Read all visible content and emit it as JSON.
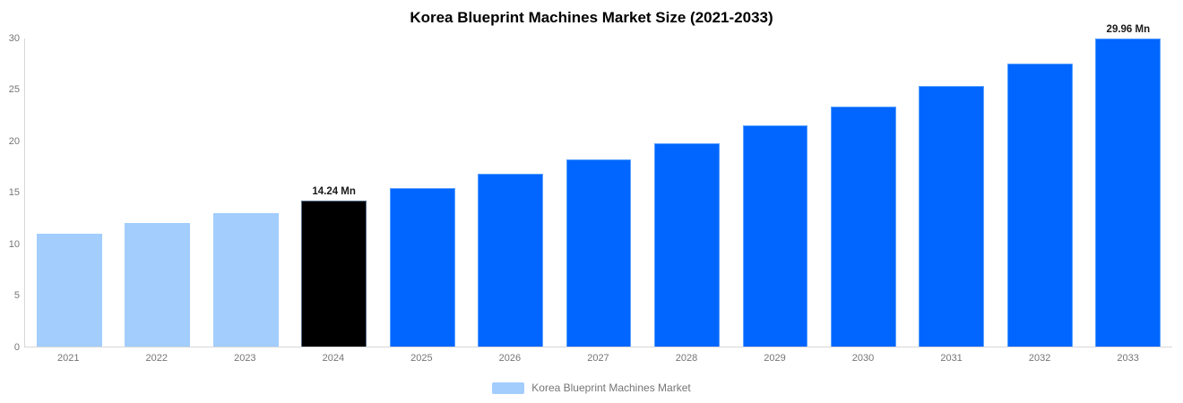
{
  "chart_data": {
    "type": "bar",
    "title": "Korea Blueprint Machines Market Size (2021-2033)",
    "unit": "Mn",
    "categories": [
      "2021",
      "2022",
      "2023",
      "2024",
      "2025",
      "2026",
      "2027",
      "2028",
      "2029",
      "2030",
      "2031",
      "2032",
      "2033"
    ],
    "values": [
      11.0,
      12.0,
      13.0,
      14.24,
      15.47,
      16.8,
      18.25,
      19.82,
      21.53,
      23.38,
      25.4,
      27.59,
      29.96
    ],
    "bar_colors": [
      "#A2CDFD",
      "#A2CDFD",
      "#A2CDFD",
      "#000000",
      "#0066FF",
      "#0066FF",
      "#0066FF",
      "#0066FF",
      "#0066FF",
      "#0066FF",
      "#0066FF",
      "#0066FF",
      "#0066FF"
    ],
    "value_labels": {
      "2024": "14.24 Mn",
      "2033": "29.96 Mn"
    },
    "xlabel": "",
    "ylabel": "",
    "ylim": [
      0,
      30
    ],
    "y_ticks": [
      0,
      5,
      10,
      15,
      20,
      25,
      30
    ],
    "grid": false,
    "legend": {
      "position": "bottom",
      "entries": [
        "Korea Blueprint Machines Market"
      ],
      "swatch_color": "#A2CDFD"
    },
    "colors": {
      "historical": "#A2CDFD",
      "base_year": "#000000",
      "forecast": "#0066FF",
      "axis_line": "#D7D7D7",
      "tick_text": "#757575",
      "title_text": "#000000",
      "value_label_text": "#1A1A1A"
    }
  }
}
